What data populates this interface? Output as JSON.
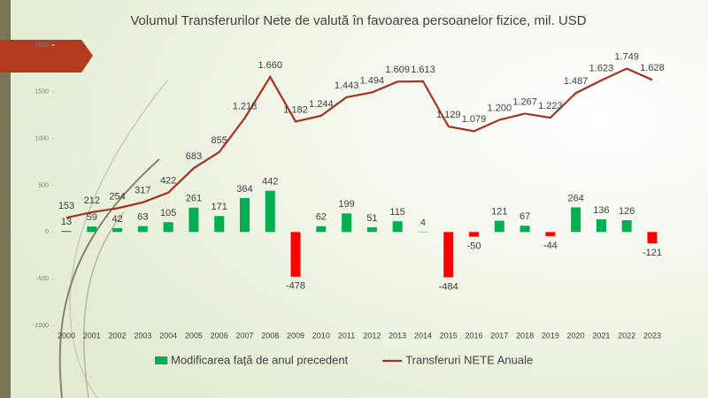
{
  "chart_data": {
    "type": "bar_line",
    "title": "Volumul Transferurilor Nete de valută în favoarea persoanelor fizice, mil. USD",
    "categories": [
      "2000",
      "2001",
      "2002",
      "2003",
      "2004",
      "2005",
      "2006",
      "2007",
      "2008",
      "2009",
      "2010",
      "2011",
      "2012",
      "2013",
      "2014",
      "2015",
      "2016",
      "2017",
      "2018",
      "2019",
      "2020",
      "2021",
      "2022",
      "2023"
    ],
    "series": [
      {
        "name": "Modificarea față de anul precedent",
        "type": "bar",
        "color": "#00b050",
        "negative_color": "#ff0000",
        "values": [
          13,
          59,
          42,
          63,
          105,
          261,
          171,
          364,
          442,
          -478,
          62,
          199,
          51,
          115,
          4,
          -484,
          -50,
          121,
          67,
          -44,
          264,
          136,
          126,
          -121
        ]
      },
      {
        "name": "Transferuri NETE Anuale",
        "type": "line",
        "color": "#a5321e",
        "values": [
          153,
          212,
          254,
          317,
          422,
          683,
          855,
          1218,
          1660,
          1182,
          1244,
          1443,
          1494,
          1609,
          1613,
          1129,
          1079,
          1200,
          1267,
          1223,
          1487,
          1623,
          1749,
          1628
        ],
        "value_labels": [
          "153",
          "212",
          "254",
          "317",
          "422",
          "683",
          "855",
          "1.218",
          "1.660",
          "1.182",
          "1.244",
          "1.443",
          "1.494",
          "1.609",
          "1.613",
          "1.129",
          "1.079",
          "1.200",
          "1.267",
          "1.223",
          "1.487",
          "1.623",
          "1.749",
          "1.628"
        ]
      }
    ],
    "ylim": [
      -1000,
      2000
    ],
    "yticks": [
      -1000,
      -500,
      0,
      500,
      1000,
      1500,
      2000
    ],
    "legend": "bottom"
  }
}
